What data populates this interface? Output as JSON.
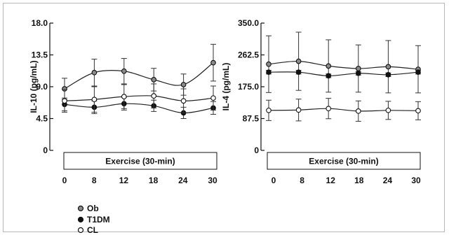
{
  "chart_data": [
    {
      "type": "line",
      "title": "",
      "ylabel": "IL-10 (pg/mL)",
      "xlabel": "",
      "box_label": "Exercise (30-min)",
      "ylim": [
        0,
        18.0
      ],
      "yticks": [
        "0",
        "4.5",
        "9.0",
        "13.5",
        "18.0"
      ],
      "ytick_values": [
        0,
        4.5,
        9.0,
        13.5,
        18.0
      ],
      "xticks": [
        "0",
        "8",
        "12",
        "18",
        "24",
        "30"
      ],
      "grid": false,
      "series": [
        {
          "name": "Ob",
          "marker": "gray",
          "values": [
            8.7,
            11.0,
            11.2,
            10.0,
            9.3,
            12.4
          ],
          "err": [
            1.5,
            1.9,
            1.8,
            1.6,
            1.5,
            2.6
          ]
        },
        {
          "name": "T1DM",
          "marker": "black",
          "values": [
            6.5,
            6.1,
            6.6,
            6.3,
            5.3,
            6.0
          ],
          "err": [
            0.9,
            0.9,
            0.9,
            0.8,
            0.8,
            0.9
          ]
        },
        {
          "name": "CL",
          "marker": "white",
          "values": [
            7.0,
            7.2,
            7.6,
            7.7,
            7.0,
            7.4
          ],
          "err": [
            1.6,
            1.8,
            1.7,
            1.7,
            1.7,
            1.7
          ]
        }
      ]
    },
    {
      "type": "line",
      "title": "",
      "ylabel": "IL-4 (pg/mL)",
      "xlabel": "",
      "box_label": "Exercise (30-min)",
      "ylim": [
        0,
        350.0
      ],
      "yticks": [
        "0",
        "87.5",
        "175.0",
        "262.5",
        "350.0"
      ],
      "ytick_values": [
        0,
        87.5,
        175.0,
        262.5,
        350.0
      ],
      "xticks": [
        "0",
        "8",
        "12",
        "18",
        "24",
        "30"
      ],
      "grid": false,
      "series": [
        {
          "name": "Ob",
          "marker": "gray",
          "values": [
            237,
            245,
            232,
            225,
            230,
            223
          ],
          "err": [
            78,
            80,
            72,
            65,
            72,
            65
          ]
        },
        {
          "name": "T1DM",
          "marker": "black",
          "values": [
            215,
            215,
            205,
            212,
            208,
            215
          ],
          "err": [
            5,
            5,
            5,
            5,
            5,
            5
          ]
        },
        {
          "name": "CL",
          "marker": "white",
          "values": [
            110,
            111,
            115,
            108,
            110,
            109
          ],
          "err": [
            28,
            30,
            28,
            28,
            25,
            25
          ]
        }
      ]
    }
  ],
  "legend": {
    "placement": "bottom-left",
    "items": [
      {
        "label": "Ob",
        "color": "#8a8a8a"
      },
      {
        "label": "T1DM",
        "color": "#111111"
      },
      {
        "label": "CL",
        "color": "#ffffff"
      }
    ]
  }
}
